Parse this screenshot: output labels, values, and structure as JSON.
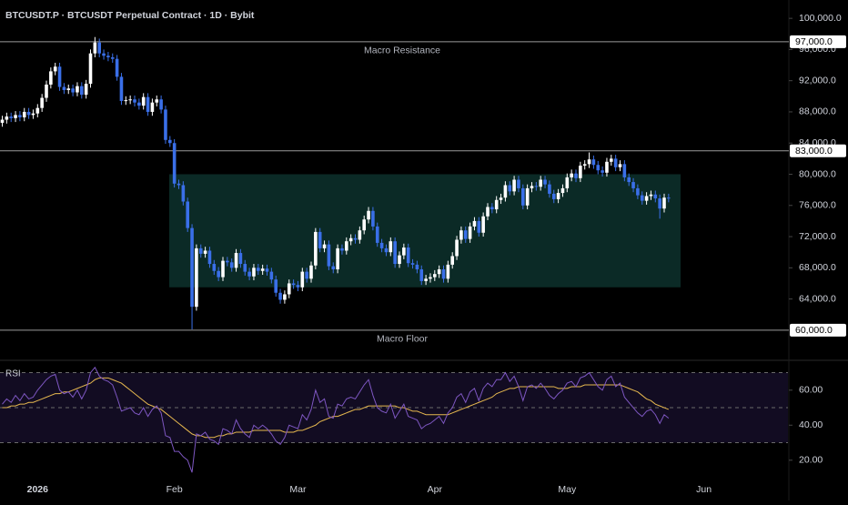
{
  "chart_data": [
    {
      "type": "candlestick",
      "title": "BTCUSDT.P · BTCUSDT Perpetual Contract · 1D · Bybit",
      "categories": [
        null,
        null,
        null,
        null,
        null,
        null,
        null,
        null,
        "2026",
        null,
        null,
        null,
        null,
        null,
        null,
        null,
        null,
        null,
        null,
        null,
        null,
        null,
        null,
        null,
        null,
        null,
        null,
        null,
        null,
        null,
        null,
        null,
        null,
        null,
        null,
        null,
        null,
        null,
        null,
        "Feb",
        null,
        null,
        null,
        null,
        null,
        null,
        null,
        null,
        null,
        null,
        null,
        null,
        null,
        null,
        null,
        null,
        null,
        null,
        null,
        null,
        null,
        null,
        null,
        null,
        null,
        null,
        null,
        "Mar",
        null,
        null,
        null,
        null,
        null,
        null,
        null,
        null,
        null,
        null,
        null,
        null,
        null,
        null,
        null,
        null,
        null,
        null,
        null,
        null,
        null,
        null,
        null,
        null,
        null,
        null,
        null,
        null,
        null,
        null,
        "Apr",
        null,
        null,
        null,
        null,
        null,
        null,
        null,
        null,
        null,
        null,
        null,
        null,
        null,
        null,
        null,
        null,
        null,
        null,
        null,
        null,
        null,
        null,
        null,
        null,
        null,
        null,
        null,
        null,
        null,
        "May",
        null,
        null,
        null,
        null,
        null,
        null,
        null,
        null,
        null,
        null,
        null,
        null,
        null,
        null,
        null,
        null,
        null,
        null,
        null,
        null,
        null,
        null,
        null,
        null,
        null,
        null,
        null,
        null,
        null,
        null,
        "Jun"
      ],
      "open": [
        86600,
        87000,
        87400,
        87200,
        87600,
        87300,
        88000,
        87600,
        87800,
        88500,
        89800,
        91500,
        93200,
        93800,
        91200,
        90800,
        91000,
        90500,
        91300,
        90200,
        91600,
        95500,
        96900,
        95500,
        95200,
        95000,
        94800,
        92500,
        89400,
        89500,
        89600,
        89200,
        88800,
        89900,
        88000,
        89200,
        89600,
        88300,
        84400,
        84000,
        78800,
        78600,
        76500,
        73100,
        63000,
        70500,
        69800,
        70200,
        68500,
        67600,
        66800,
        68900,
        68700,
        68000,
        69900,
        68500,
        67500,
        66900,
        68000,
        67600,
        67900,
        67500,
        66500,
        64800,
        63900,
        64600,
        66000,
        65800,
        65500,
        67500,
        66600,
        68300,
        72600,
        70500,
        71000,
        68200,
        67800,
        70500,
        70200,
        71400,
        71800,
        71600,
        72800,
        74200,
        75300,
        73300,
        71200,
        70500,
        70000,
        71400,
        68500,
        69600,
        70600,
        68600,
        68400,
        67800,
        66300,
        66600,
        66800,
        67200,
        67800,
        66600,
        68400,
        69500,
        71600,
        72800,
        71700,
        73300,
        74000,
        72500,
        74600,
        75800,
        75500,
        76700,
        77000,
        78600,
        77800,
        79300,
        78200,
        76000,
        78200,
        78500,
        78400,
        79300,
        78700,
        77500,
        76800,
        77600,
        78200,
        79600,
        80100,
        79500,
        81100,
        81300,
        81900,
        81200,
        80500,
        80200,
        81600,
        82000,
        80900,
        81300,
        79600,
        79000,
        78200,
        77300,
        76600,
        77200,
        77400,
        76900,
        75600,
        77000,
        null,
        null,
        null,
        null,
        null,
        null,
        null,
        null
      ],
      "high": [
        87500,
        87900,
        87900,
        88100,
        88100,
        88500,
        88500,
        88300,
        89000,
        90300,
        92000,
        93700,
        94300,
        94300,
        91700,
        91500,
        91500,
        91800,
        91800,
        92100,
        96000,
        97600,
        97400,
        96000,
        95700,
        95500,
        95300,
        93000,
        90000,
        90100,
        90100,
        89700,
        90400,
        90400,
        89700,
        90100,
        90100,
        88800,
        84900,
        84500,
        79300,
        79100,
        77000,
        73600,
        71000,
        71000,
        70700,
        70700,
        69000,
        68100,
        69400,
        69400,
        69200,
        70400,
        70400,
        69000,
        68000,
        68500,
        68500,
        68400,
        68400,
        68000,
        67000,
        65300,
        65100,
        66500,
        66500,
        66300,
        68000,
        68000,
        68800,
        73100,
        73100,
        71500,
        71500,
        68700,
        71000,
        71000,
        71900,
        72300,
        72300,
        73300,
        74700,
        75800,
        75800,
        73800,
        71700,
        71000,
        71900,
        71900,
        70100,
        71100,
        71100,
        69100,
        68900,
        68300,
        67100,
        67300,
        67700,
        68300,
        68300,
        68900,
        70000,
        72100,
        73300,
        73300,
        73800,
        74500,
        74500,
        75100,
        76300,
        76300,
        77200,
        77500,
        79100,
        79100,
        79800,
        79800,
        78700,
        78700,
        79000,
        79000,
        79800,
        79800,
        79200,
        78000,
        78100,
        78700,
        80100,
        80600,
        80600,
        81600,
        81800,
        82800,
        82400,
        81700,
        81000,
        82100,
        82500,
        82500,
        81800,
        81800,
        80100,
        79500,
        78700,
        77800,
        77700,
        77900,
        77900,
        77400,
        77500,
        77500,
        null,
        null,
        null,
        null,
        null,
        null,
        null,
        null
      ],
      "low": [
        86100,
        86500,
        86700,
        86700,
        86800,
        86800,
        87100,
        87100,
        87300,
        88000,
        89300,
        91000,
        92700,
        90700,
        90300,
        90300,
        90000,
        90000,
        89700,
        89700,
        91100,
        95000,
        95000,
        94700,
        94500,
        94300,
        92000,
        88900,
        88900,
        89000,
        88700,
        88300,
        88300,
        87500,
        87500,
        88700,
        87800,
        83900,
        83500,
        78300,
        78100,
        76000,
        72600,
        60100,
        62500,
        69300,
        69300,
        68000,
        67100,
        66300,
        66300,
        68200,
        67500,
        67500,
        68000,
        67000,
        66400,
        66400,
        67100,
        67100,
        67000,
        66000,
        64300,
        63400,
        63400,
        64100,
        65300,
        65000,
        65000,
        66100,
        66100,
        67800,
        70000,
        70000,
        67700,
        67300,
        67300,
        69700,
        69700,
        70900,
        71100,
        71100,
        72300,
        73700,
        72800,
        70700,
        70000,
        69500,
        69500,
        68000,
        68000,
        69100,
        68100,
        67900,
        67300,
        65800,
        65800,
        66100,
        66300,
        66700,
        66100,
        66100,
        67900,
        69000,
        71100,
        71200,
        71200,
        72800,
        72000,
        72000,
        74100,
        75000,
        75000,
        76200,
        76500,
        77300,
        77300,
        77700,
        75500,
        75500,
        77700,
        77900,
        77900,
        78200,
        77000,
        76300,
        76300,
        77100,
        77700,
        79100,
        79000,
        79000,
        80600,
        80800,
        80700,
        80000,
        79700,
        79700,
        81100,
        80400,
        80400,
        79100,
        78500,
        77700,
        76800,
        76100,
        76100,
        76700,
        76400,
        74300,
        75100,
        76400,
        null,
        null,
        null,
        null,
        null,
        null,
        null,
        null
      ],
      "close": [
        87000,
        87400,
        87200,
        87600,
        87300,
        88000,
        87600,
        87800,
        88500,
        89800,
        91500,
        93200,
        93800,
        91200,
        90800,
        91000,
        90500,
        91300,
        90200,
        91600,
        95500,
        96900,
        95500,
        95200,
        95000,
        94800,
        92500,
        89400,
        89500,
        89600,
        89200,
        88800,
        89900,
        88000,
        89200,
        89600,
        88300,
        84400,
        84000,
        78800,
        78600,
        76500,
        73100,
        63000,
        70500,
        69800,
        70200,
        68500,
        67600,
        66800,
        68900,
        68700,
        68000,
        69900,
        68500,
        67500,
        66900,
        68000,
        67600,
        67900,
        67500,
        66500,
        64800,
        63900,
        64600,
        66000,
        65800,
        65500,
        67500,
        66600,
        68300,
        72600,
        70500,
        71000,
        68200,
        67800,
        70500,
        70200,
        71400,
        71800,
        71600,
        72800,
        74200,
        75300,
        73300,
        71200,
        70500,
        70000,
        71400,
        68500,
        69600,
        70600,
        68600,
        68400,
        67800,
        66300,
        66600,
        66800,
        67200,
        67800,
        66600,
        68400,
        69500,
        71600,
        72800,
        71700,
        73300,
        74000,
        72500,
        74600,
        75800,
        75500,
        76700,
        77000,
        78600,
        77800,
        79300,
        78200,
        76000,
        78200,
        78500,
        78400,
        79300,
        78700,
        77500,
        76800,
        77600,
        78200,
        79600,
        80100,
        79500,
        81100,
        81300,
        81900,
        81200,
        80500,
        80200,
        81600,
        82000,
        80900,
        81300,
        79600,
        79000,
        78200,
        77300,
        76600,
        77200,
        77400,
        76900,
        75600,
        77000,
        76900,
        null,
        null,
        null,
        null,
        null,
        null,
        null,
        null
      ],
      "up_color": "#ffffff",
      "down_color": "#3a6fe8",
      "ylim": [
        56250,
        102350
      ],
      "yticks": [
        {
          "value": 100000,
          "label": "100,000.0"
        },
        {
          "value": 96000,
          "label": "96,000.0"
        },
        {
          "value": 92000,
          "label": "92,000.0"
        },
        {
          "value": 88000,
          "label": "88,000.0"
        },
        {
          "value": 84000,
          "label": "84,000.0"
        },
        {
          "value": 80000,
          "label": "80,000.0"
        },
        {
          "value": 76000,
          "label": "76,000.0"
        },
        {
          "value": 72000,
          "label": "72,000.0"
        },
        {
          "value": 68000,
          "label": "68,000.0"
        },
        {
          "value": 64000,
          "label": "64,000.0"
        }
      ],
      "levels": [
        {
          "value": 97000,
          "label": "97,000.0",
          "name": "Macro Resistance"
        },
        {
          "value": 83000,
          "label": "83,000.0"
        },
        {
          "value": 60000,
          "label": "60,000.0",
          "name": "Macro Floor"
        }
      ],
      "range_box": {
        "low": 65500,
        "high": 80000,
        "color": "#0b2a26"
      }
    },
    {
      "type": "line",
      "title": "RSI",
      "ylim": [
        10,
        76
      ],
      "yticks": [
        {
          "value": 60,
          "label": "60.00"
        },
        {
          "value": 40,
          "label": "40.00"
        },
        {
          "value": 20,
          "label": "20.00"
        }
      ],
      "levels": [
        70,
        50,
        30
      ],
      "band": [
        30,
        70
      ],
      "band_color": "#120c22",
      "series": [
        {
          "color": "#7e57c2",
          "values": [
            52,
            55,
            53,
            57,
            54,
            58,
            55,
            56,
            60,
            63,
            66,
            68,
            69,
            60,
            58,
            59,
            56,
            60,
            55,
            60,
            70,
            73,
            68,
            66,
            65,
            63,
            56,
            48,
            49,
            50,
            47,
            46,
            50,
            45,
            49,
            51,
            47,
            34,
            33,
            25,
            25,
            22,
            20,
            13,
            35,
            34,
            36,
            32,
            31,
            29,
            38,
            37,
            35,
            43,
            38,
            35,
            33,
            40,
            38,
            40,
            38,
            35,
            31,
            29,
            33,
            40,
            39,
            38,
            46,
            43,
            49,
            60,
            53,
            55,
            45,
            44,
            52,
            51,
            55,
            56,
            55,
            59,
            63,
            66,
            57,
            50,
            48,
            47,
            52,
            44,
            48,
            52,
            45,
            44,
            43,
            38,
            40,
            41,
            43,
            45,
            41,
            47,
            50,
            56,
            58,
            53,
            59,
            61,
            54,
            61,
            64,
            62,
            66,
            66,
            70,
            65,
            68,
            62,
            54,
            62,
            63,
            61,
            64,
            61,
            57,
            55,
            58,
            60,
            64,
            65,
            62,
            67,
            68,
            70,
            66,
            62,
            60,
            66,
            68,
            62,
            64,
            56,
            53,
            50,
            47,
            45,
            48,
            49,
            46,
            41,
            46,
            44,
            null,
            null,
            null,
            null,
            null,
            null,
            null,
            null
          ]
        },
        {
          "color": "#e6b84f",
          "values": [
            50,
            50,
            51,
            51,
            52,
            52,
            53,
            53,
            54,
            55,
            56,
            57,
            58,
            58,
            59,
            59,
            60,
            61,
            62,
            63,
            64,
            66,
            67,
            67,
            67,
            66,
            65,
            64,
            62,
            60,
            58,
            56,
            54,
            52,
            51,
            50,
            49,
            47,
            45,
            43,
            41,
            39,
            37,
            35,
            34,
            34,
            33,
            33,
            33,
            34,
            34,
            35,
            35,
            36,
            36,
            36,
            36,
            37,
            37,
            37,
            37,
            37,
            37,
            37,
            36,
            36,
            36,
            37,
            37,
            38,
            39,
            40,
            42,
            43,
            44,
            45,
            45,
            46,
            47,
            48,
            49,
            49,
            50,
            51,
            51,
            51,
            51,
            51,
            51,
            51,
            50,
            50,
            49,
            48,
            48,
            47,
            46,
            46,
            46,
            46,
            46,
            46,
            47,
            48,
            49,
            50,
            51,
            52,
            53,
            54,
            55,
            56,
            58,
            59,
            60,
            61,
            61,
            62,
            62,
            62,
            62,
            62,
            62,
            62,
            62,
            62,
            61,
            61,
            61,
            62,
            62,
            62,
            63,
            63,
            63,
            63,
            63,
            63,
            63,
            63,
            63,
            62,
            61,
            60,
            59,
            57,
            55,
            54,
            52,
            51,
            50,
            49,
            null,
            null,
            null,
            null,
            null,
            null,
            null,
            null
          ]
        }
      ]
    }
  ]
}
